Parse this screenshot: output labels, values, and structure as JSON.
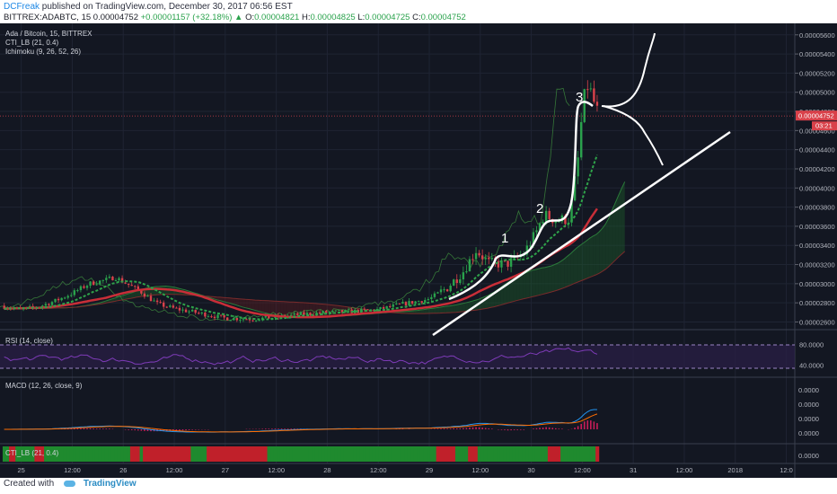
{
  "header": {
    "author": "DCFreak",
    "published_text": "published on TradingView.com, December 30, 2017 06:56 EST",
    "symbol": "BITTREX:ADABTC, 15",
    "last": "0.00004752",
    "change": "+0.00001157 (+32.18%)",
    "o_label": "O:",
    "o": "0.00004821",
    "h_label": "H:",
    "h": "0.00004825",
    "l_label": "L:",
    "l": "0.00004725",
    "c_label": "C:",
    "c": "0.00004752"
  },
  "legend": {
    "title": "Ada / Bitcoin, 15, BITTREX",
    "cti": "CTI_LB (21, 0.4)",
    "ichimoku": "Ichimoku (9, 26, 52, 26)"
  },
  "price_tag": "0.00004752",
  "countdown_tag": "03:21",
  "annotations": [
    "1",
    "2",
    "3"
  ],
  "rsi_label": "RSI (14, close)",
  "macd_label": "MACD (12, 26, close, 9)",
  "cti_label": "CTI_LB (21, 0.4)",
  "footer": {
    "created_with": "Created with",
    "brand": "TradingView"
  },
  "colors": {
    "background": "#131722",
    "bull_candle": "#2aa24c",
    "bear_candle": "#d9414a",
    "rsi": "#7e3bb8",
    "macd": "#2196f3",
    "signal": "#ff6d00",
    "histogram": "#e91e63",
    "cti_red": "#c0202a",
    "cti_green": "#1f8a2e",
    "drawing": "#ffffff"
  },
  "chart_data": {
    "type": "line",
    "panes": [
      "price",
      "rsi",
      "macd",
      "cti"
    ],
    "price_axis": [
      "0.00005600",
      "0.00005400",
      "0.00005200",
      "0.00005000",
      "0.00004800",
      "0.00004600",
      "0.00004400",
      "0.00004200",
      "0.00004000",
      "0.00003800",
      "0.00003600",
      "0.00003400",
      "0.00003200",
      "0.00003000",
      "0.00002800",
      "0.00002600"
    ],
    "price_axis_values": [
      5.6e-05,
      5.4e-05,
      5.2e-05,
      5e-05,
      4.8e-05,
      4.6e-05,
      4.4e-05,
      4.2e-05,
      4e-05,
      3.8e-05,
      3.6e-05,
      3.4e-05,
      3.2e-05,
      3e-05,
      2.8e-05,
      2.6e-05
    ],
    "price_range": [
      2.52e-05,
      5.72e-05
    ],
    "rsi_axis": [
      "80.0000",
      "40.0000"
    ],
    "rsi_axis_values": [
      80,
      40
    ],
    "rsi_range": [
      20,
      100
    ],
    "macd_axis": [
      "0.0000",
      "0.0000",
      "0.0000",
      "0.0000"
    ],
    "cti_axis": [
      "0.0000"
    ],
    "x_labels": [
      "25",
      "12:00",
      "26",
      "12:00",
      "27",
      "12:00",
      "28",
      "12:00",
      "29",
      "12:00",
      "30",
      "12:00",
      "31",
      "12:00",
      "2018",
      "12:0"
    ],
    "x_label_times": [
      0,
      12,
      24,
      36,
      48,
      60,
      72,
      84,
      96,
      108,
      120,
      132,
      144,
      156,
      168,
      180
    ],
    "x_range_hours": [
      -5,
      182
    ],
    "price_series": [
      {
        "t": -5,
        "p": 2.77e-05
      },
      {
        "t": 0,
        "p": 2.73e-05
      },
      {
        "t": 4,
        "p": 2.76e-05
      },
      {
        "t": 8,
        "p": 2.82e-05
      },
      {
        "t": 12,
        "p": 2.9e-05
      },
      {
        "t": 16,
        "p": 3e-05
      },
      {
        "t": 20,
        "p": 3.04e-05
      },
      {
        "t": 22,
        "p": 3.07e-05
      },
      {
        "t": 24,
        "p": 3.02e-05
      },
      {
        "t": 28,
        "p": 2.92e-05
      },
      {
        "t": 32,
        "p": 2.79e-05
      },
      {
        "t": 36,
        "p": 2.74e-05
      },
      {
        "t": 42,
        "p": 2.69e-05
      },
      {
        "t": 48,
        "p": 2.64e-05
      },
      {
        "t": 54,
        "p": 2.63e-05
      },
      {
        "t": 60,
        "p": 2.65e-05
      },
      {
        "t": 66,
        "p": 2.68e-05
      },
      {
        "t": 72,
        "p": 2.7e-05
      },
      {
        "t": 78,
        "p": 2.71e-05
      },
      {
        "t": 84,
        "p": 2.73e-05
      },
      {
        "t": 90,
        "p": 2.79e-05
      },
      {
        "t": 96,
        "p": 2.84e-05
      },
      {
        "t": 100,
        "p": 2.95e-05
      },
      {
        "t": 104,
        "p": 3.13e-05
      },
      {
        "t": 107,
        "p": 3.35e-05
      },
      {
        "t": 110,
        "p": 3.22e-05
      },
      {
        "t": 114,
        "p": 3.2e-05
      },
      {
        "t": 118,
        "p": 3.3e-05
      },
      {
        "t": 121,
        "p": 3.52e-05
      },
      {
        "t": 123,
        "p": 3.72e-05
      },
      {
        "t": 126,
        "p": 3.66e-05
      },
      {
        "t": 129,
        "p": 3.68e-05
      },
      {
        "t": 131,
        "p": 4.3e-05
      },
      {
        "t": 132,
        "p": 4.8e-05
      },
      {
        "t": 133,
        "p": 5.09e-05
      },
      {
        "t": 134,
        "p": 5e-05
      },
      {
        "t": 135,
        "p": 4.86e-05
      },
      {
        "t": 136,
        "p": 4.75e-05
      }
    ],
    "last_price": 4.752e-05
  }
}
